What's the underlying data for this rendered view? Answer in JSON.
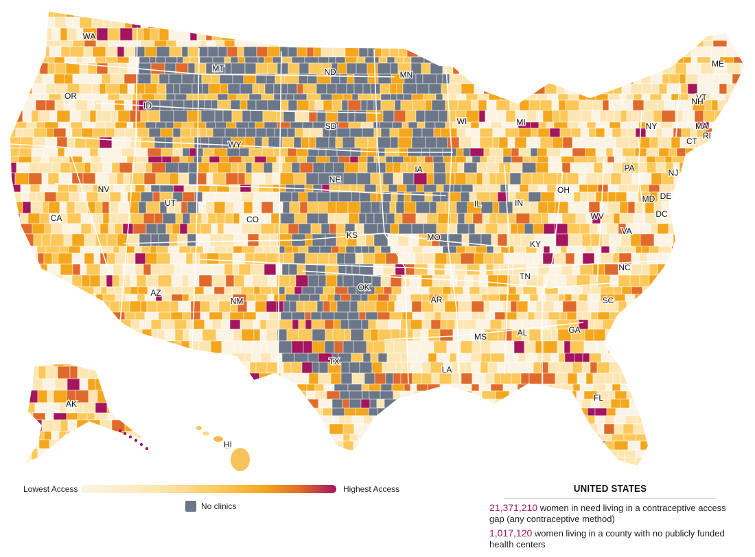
{
  "map": {
    "legend": {
      "low_label": "Lowest Access",
      "high_label": "Highest Access",
      "no_clinics_label": "No clinics",
      "scale_colors": [
        "#fbf3e4",
        "#fde6b3",
        "#fcc85a",
        "#f4a71d",
        "#e06a2c",
        "#a3155f"
      ],
      "no_clinics_color": "#6b7788"
    },
    "state_labels": [
      "WA",
      "OR",
      "ID",
      "MT",
      "ND",
      "MN",
      "WI",
      "MI",
      "ME",
      "VT",
      "NH",
      "NY",
      "MA",
      "CT",
      "RI",
      "PA",
      "NJ",
      "OH",
      "IN",
      "IL",
      "IA",
      "NE",
      "SD",
      "WY",
      "NV",
      "CA",
      "UT",
      "CO",
      "KS",
      "MO",
      "KY",
      "WV",
      "MD",
      "DE",
      "DC",
      "VA",
      "NC",
      "TN",
      "SC",
      "GA",
      "AL",
      "MS",
      "AR",
      "OK",
      "TX",
      "LA",
      "FL",
      "NM",
      "AZ",
      "AK",
      "HI"
    ]
  },
  "stats": {
    "title": "UNITED STATES",
    "line1_number": "21,371,210",
    "line1_text": " women in need living in a contraceptive access gap (any contraceptive method)",
    "line2_number": "1,017,120",
    "line2_text": " women living in a county with no publicly funded health centers"
  }
}
